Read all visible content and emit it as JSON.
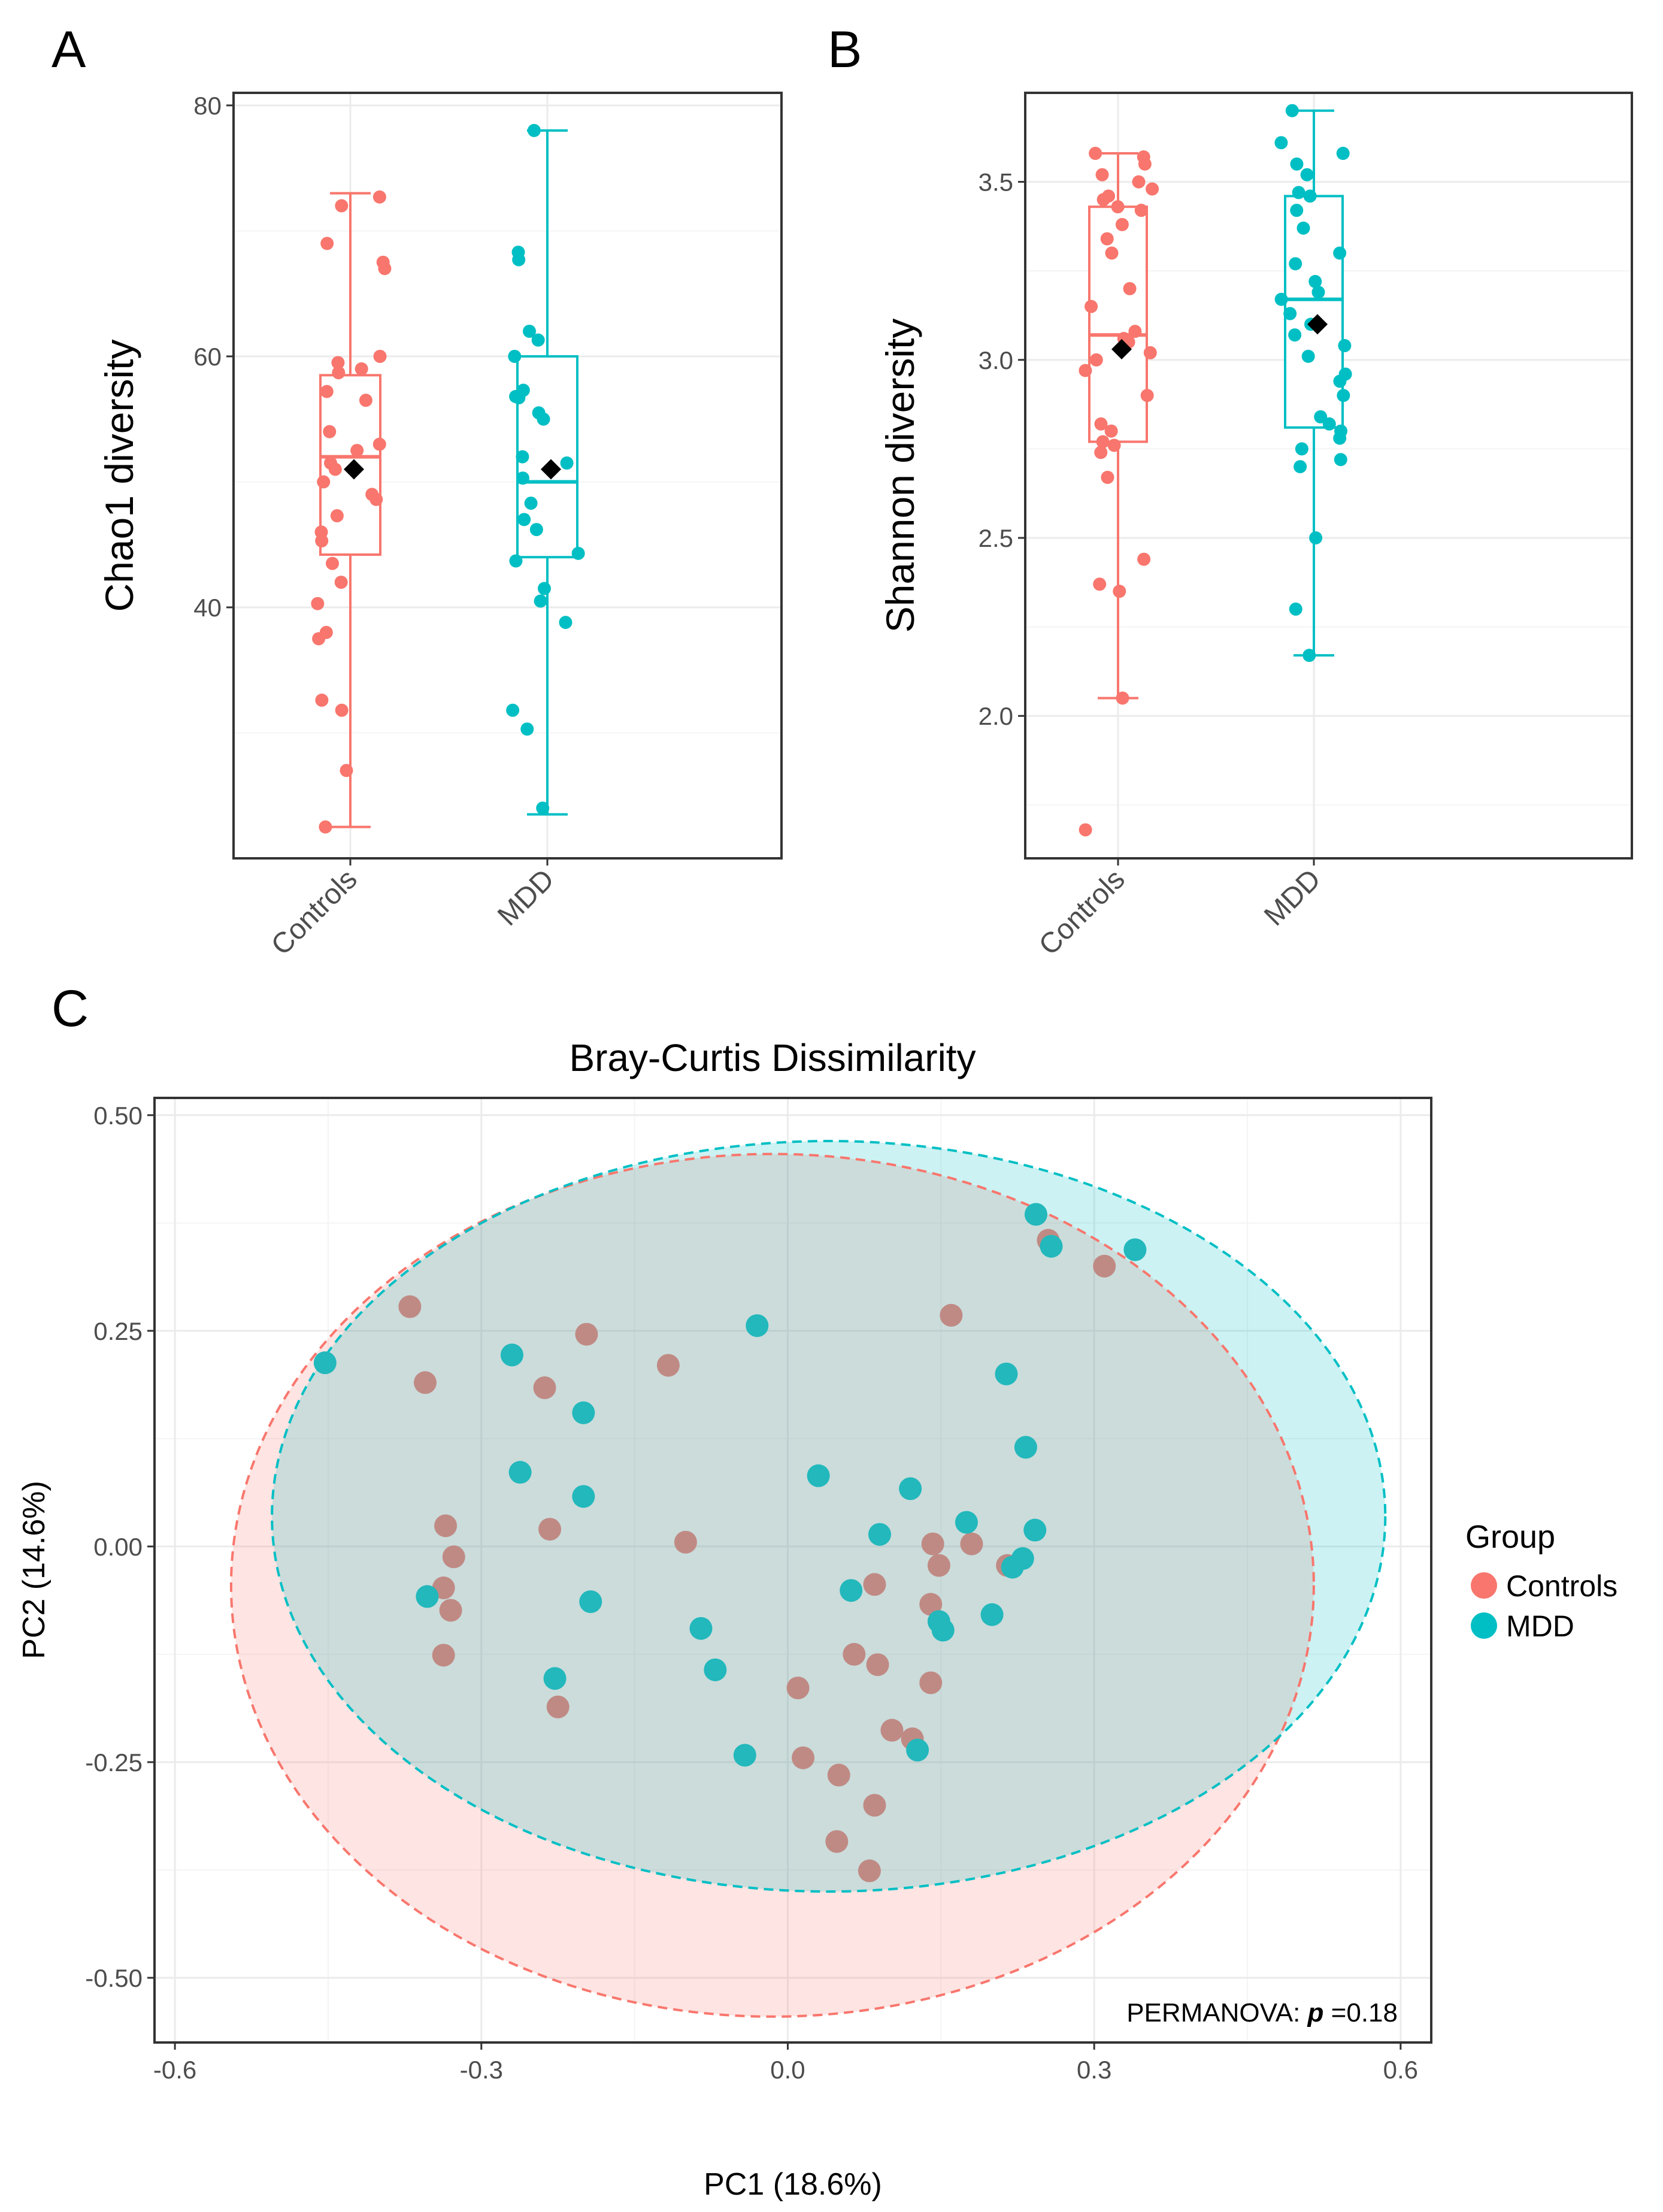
{
  "colors": {
    "controls": "#F8766D",
    "mdd": "#00BFC4",
    "controls_fill": "#F8766D",
    "mdd_fill": "#00BFC4",
    "overlap_point": "#C08A84",
    "mean_marker": "#000000",
    "grid": "#EBEBEB",
    "axis": "#333333"
  },
  "panels": {
    "a_label": "A",
    "b_label": "B",
    "c_label": "C"
  },
  "chart_data": [
    {
      "id": "A",
      "type": "box",
      "title": "",
      "xlabel": "",
      "ylabel": "Chao1 diversity",
      "categories": [
        "Controls",
        "MDD"
      ],
      "ylim": [
        20,
        81
      ],
      "yticks": [
        40,
        60,
        80
      ],
      "yticklabels": [
        "40",
        "60",
        "80"
      ],
      "boxes": [
        {
          "name": "Controls",
          "min": 22.5,
          "q1": 44.2,
          "median": 52.0,
          "q3": 58.5,
          "max": 73.0,
          "mean": 51.0
        },
        {
          "name": "MDD",
          "min": 23.5,
          "q1": 44.0,
          "median": 50.0,
          "q3": 60.0,
          "max": 78.0,
          "mean": 51.0
        }
      ],
      "points": [
        {
          "group": "Controls",
          "values": [
            72.7,
            72.0,
            69.0,
            67.5,
            67.0,
            60.0,
            59.5,
            59.0,
            58.7,
            57.2,
            56.5,
            54.0,
            53.0,
            52.5,
            51.5,
            51.0,
            50.0,
            49.0,
            48.6,
            47.3,
            46.0,
            45.3,
            43.5,
            42.0,
            40.3,
            38.0,
            37.5,
            32.6,
            31.8,
            27.0,
            22.5
          ]
        },
        {
          "group": "MDD",
          "values": [
            78.0,
            68.3,
            67.7,
            62.0,
            61.3,
            60.0,
            57.3,
            56.8,
            56.7,
            55.5,
            55.0,
            52.0,
            51.5,
            50.3,
            48.3,
            47.0,
            46.2,
            44.3,
            43.7,
            41.5,
            40.5,
            38.8,
            31.8,
            30.3,
            24.0
          ]
        }
      ]
    },
    {
      "id": "B",
      "type": "box",
      "title": "",
      "xlabel": "",
      "ylabel": "Shannon diversity",
      "categories": [
        "Controls",
        "MDD"
      ],
      "ylim": [
        1.6,
        3.75
      ],
      "yticks": [
        2.0,
        2.5,
        3.0,
        3.5
      ],
      "yticklabels": [
        "2.0",
        "2.5",
        "3.0",
        "3.5"
      ],
      "boxes": [
        {
          "name": "Controls",
          "min": 2.05,
          "q1": 2.77,
          "median": 3.07,
          "q3": 3.43,
          "max": 3.58,
          "mean": 3.03
        },
        {
          "name": "MDD",
          "min": 2.17,
          "q1": 2.81,
          "median": 3.17,
          "q3": 3.46,
          "max": 3.7,
          "mean": 3.1
        }
      ],
      "points": [
        {
          "group": "Controls",
          "values": [
            3.58,
            3.57,
            3.55,
            3.52,
            3.5,
            3.48,
            3.46,
            3.45,
            3.43,
            3.42,
            3.38,
            3.34,
            3.3,
            3.2,
            3.15,
            3.08,
            3.06,
            3.05,
            3.02,
            3.0,
            2.97,
            2.9,
            2.82,
            2.8,
            2.77,
            2.76,
            2.74,
            2.67,
            2.44,
            2.37,
            2.35,
            2.05,
            1.68
          ]
        },
        {
          "group": "MDD",
          "values": [
            3.7,
            3.61,
            3.58,
            3.55,
            3.52,
            3.47,
            3.46,
            3.42,
            3.37,
            3.3,
            3.27,
            3.22,
            3.19,
            3.17,
            3.13,
            3.1,
            3.07,
            3.04,
            3.01,
            2.96,
            2.94,
            2.9,
            2.84,
            2.82,
            2.8,
            2.78,
            2.75,
            2.72,
            2.7,
            2.5,
            2.3,
            2.17
          ]
        }
      ]
    },
    {
      "id": "C",
      "type": "scatter",
      "title": "Bray-Curtis Dissimilarity",
      "xlabel": "PC1 (18.6%)",
      "ylabel": "PC2 (14.6%)",
      "xlim": [
        -0.62,
        0.63
      ],
      "ylim": [
        -0.575,
        0.52
      ],
      "xticks": [
        -0.6,
        -0.3,
        0.0,
        0.3,
        0.6
      ],
      "xticklabels": [
        "-0.6",
        "-0.3",
        "0.0",
        "0.3",
        "0.6"
      ],
      "yticks": [
        -0.5,
        -0.25,
        0.0,
        0.25,
        0.5
      ],
      "yticklabels": [
        "-0.50",
        "-0.25",
        "0.00",
        "0.25",
        "0.50"
      ],
      "legend": {
        "title": "Group",
        "position": "right",
        "entries": [
          "Controls",
          "MDD"
        ]
      },
      "annotation_prefix": "PERMANOVA: ",
      "annotation_p": "p",
      "annotation_value": " =0.18",
      "ellipses": [
        {
          "group": "Controls",
          "center": [
            -0.015,
            -0.045
          ],
          "rx": 0.53,
          "ry": 0.5
        },
        {
          "group": "MDD",
          "center": [
            0.04,
            0.035
          ],
          "rx": 0.545,
          "ry": 0.435
        }
      ],
      "series": [
        {
          "name": "Controls",
          "points": [
            [
              -0.37,
              0.278
            ],
            [
              -0.355,
              0.19
            ],
            [
              -0.197,
              0.246
            ],
            [
              -0.117,
              0.21
            ],
            [
              -0.238,
              0.184
            ],
            [
              -0.335,
              0.024
            ],
            [
              -0.327,
              -0.012
            ],
            [
              -0.337,
              -0.048
            ],
            [
              -0.33,
              -0.074
            ],
            [
              -0.337,
              -0.126
            ],
            [
              -0.233,
              0.02
            ],
            [
              -0.1,
              0.005
            ],
            [
              -0.225,
              -0.186
            ],
            [
              0.16,
              0.268
            ],
            [
              0.255,
              0.355
            ],
            [
              0.31,
              0.325
            ],
            [
              0.142,
              0.003
            ],
            [
              0.18,
              0.003
            ],
            [
              0.215,
              -0.022
            ],
            [
              0.148,
              -0.022
            ],
            [
              0.085,
              -0.044
            ],
            [
              0.14,
              -0.067
            ],
            [
              0.065,
              -0.125
            ],
            [
              0.088,
              -0.137
            ],
            [
              0.14,
              -0.158
            ],
            [
              0.01,
              -0.164
            ],
            [
              0.102,
              -0.213
            ],
            [
              0.122,
              -0.223
            ],
            [
              0.015,
              -0.245
            ],
            [
              0.05,
              -0.265
            ],
            [
              0.085,
              -0.3
            ],
            [
              0.048,
              -0.342
            ],
            [
              0.08,
              -0.376
            ]
          ]
        },
        {
          "name": "MDD",
          "points": [
            [
              -0.453,
              0.213
            ],
            [
              -0.27,
              0.222
            ],
            [
              -0.2,
              0.155
            ],
            [
              -0.262,
              0.086
            ],
            [
              -0.2,
              0.058
            ],
            [
              -0.353,
              -0.058
            ],
            [
              -0.193,
              -0.064
            ],
            [
              -0.228,
              -0.153
            ],
            [
              -0.03,
              0.256
            ],
            [
              0.03,
              0.082
            ],
            [
              0.12,
              0.067
            ],
            [
              0.09,
              0.014
            ],
            [
              0.175,
              0.028
            ],
            [
              0.214,
              0.2
            ],
            [
              0.233,
              0.115
            ],
            [
              0.242,
              0.019
            ],
            [
              0.23,
              -0.014
            ],
            [
              0.22,
              -0.024
            ],
            [
              0.062,
              -0.051
            ],
            [
              0.148,
              -0.087
            ],
            [
              0.152,
              -0.097
            ],
            [
              0.2,
              -0.079
            ],
            [
              -0.085,
              -0.095
            ],
            [
              -0.071,
              -0.143
            ],
            [
              -0.042,
              -0.242
            ],
            [
              0.127,
              -0.236
            ],
            [
              0.243,
              0.385
            ],
            [
              0.258,
              0.348
            ],
            [
              0.34,
              0.344
            ]
          ]
        }
      ]
    }
  ]
}
